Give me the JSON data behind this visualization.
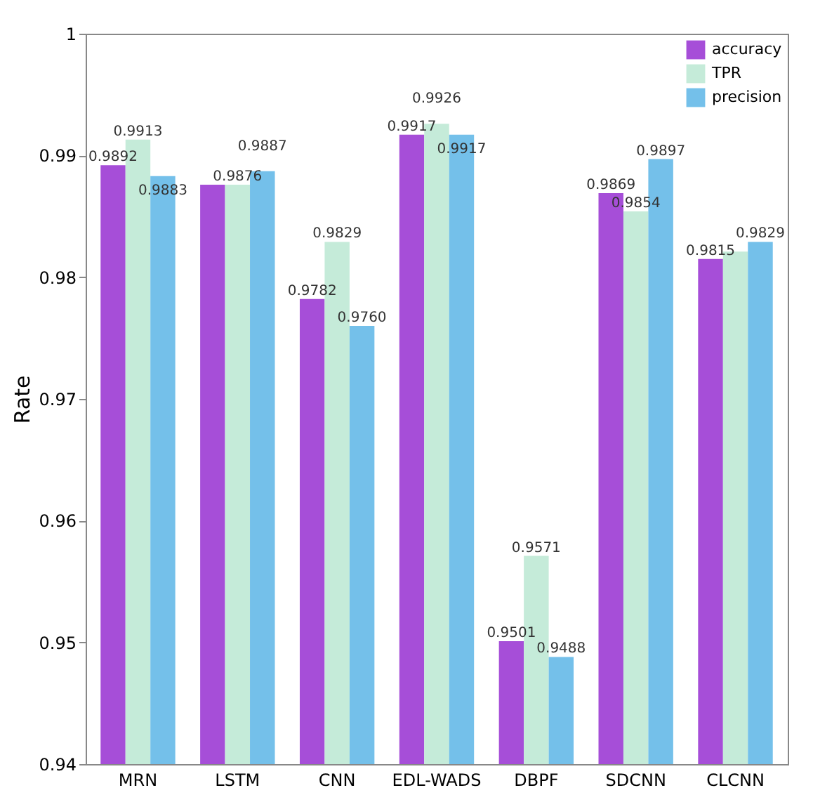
{
  "chart_data": {
    "type": "bar",
    "ylabel": "Rate",
    "categories": [
      "MRN",
      "LSTM",
      "CNN",
      "EDL-WADS",
      "DBPF",
      "SDCNN",
      "CLCNN"
    ],
    "series": [
      {
        "name": "accuracy",
        "color": "#a64ed8",
        "values": [
          0.9892,
          0.9876,
          0.9782,
          0.9917,
          0.9501,
          0.9869,
          0.9815
        ],
        "value_labels": [
          "0.9892",
          null,
          "0.9782",
          "0.9917",
          "0.9501",
          "0.9869",
          "0.9815"
        ]
      },
      {
        "name": "TPR",
        "color": "#c5ebd9",
        "values": [
          0.9913,
          0.9876,
          0.9829,
          0.9926,
          0.9571,
          0.9854,
          0.9821
        ],
        "value_labels": [
          "0.9913",
          "0.9876",
          "0.9829",
          "0.9926",
          "0.9571",
          "0.9854",
          null
        ]
      },
      {
        "name": "precision",
        "color": "#74c0ea",
        "values": [
          0.9883,
          0.9887,
          0.976,
          0.9917,
          0.9488,
          0.9897,
          0.9829
        ],
        "value_labels": [
          "0.9883",
          "0.9887",
          "0.9760",
          "0.9917",
          "0.9488",
          "0.9897",
          "0.9829"
        ]
      }
    ],
    "ylim": [
      0.94,
      1
    ],
    "yticks": [
      0.94,
      0.95,
      0.96,
      0.97,
      0.98,
      0.99,
      1
    ],
    "grid": false,
    "legend": "top right"
  }
}
